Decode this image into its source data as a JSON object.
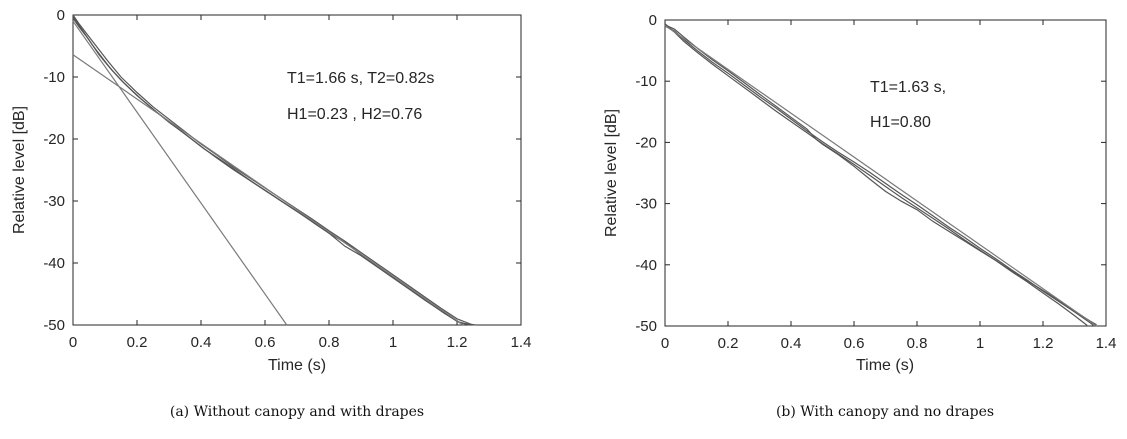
{
  "chart_data": [
    {
      "type": "line",
      "caption": "(a) Without canopy and with drapes",
      "xlabel": "Time (s)",
      "ylabel": "Relative level [dB]",
      "xlim": [
        0,
        1.4
      ],
      "ylim": [
        -50,
        0
      ],
      "xticks": [
        0,
        0.2,
        0.4,
        0.6,
        0.8,
        1,
        1.2,
        1.4
      ],
      "xtick_labels": [
        "0",
        "0.2",
        "0.4",
        "0.6",
        "0.8",
        "1",
        "1.2",
        "1.4"
      ],
      "yticks": [
        0,
        -10,
        -20,
        -30,
        -40,
        -50
      ],
      "ytick_labels": [
        "0",
        "-10",
        "-20",
        "-30",
        "-40",
        "-50"
      ],
      "grid": false,
      "annotations": [
        "T1=1.66 s, T2=0.82s",
        "H1=0.23  , H2=0.76"
      ],
      "colors": {
        "measured": "#555555",
        "fit": "#7a7a7a",
        "axis": "#262626"
      },
      "series": [
        {
          "x": [
            0,
            0.02,
            0.05,
            0.08,
            0.11,
            0.15,
            0.2,
            0.25,
            0.3,
            0.35,
            0.4,
            0.45,
            0.5,
            0.55,
            0.6,
            0.65,
            0.7,
            0.75,
            0.8,
            0.85,
            0.9,
            0.95,
            1.0,
            1.05,
            1.1,
            1.15,
            1.2,
            1.25
          ],
          "y": [
            0,
            -1.5,
            -3.5,
            -5.5,
            -7.5,
            -10.0,
            -12.5,
            -14.8,
            -16.8,
            -18.8,
            -20.8,
            -22.6,
            -24.5,
            -26.2,
            -27.9,
            -29.6,
            -31.3,
            -33.0,
            -34.8,
            -36.5,
            -38.3,
            -40.1,
            -41.9,
            -43.7,
            -45.5,
            -47.3,
            -49.0,
            -50.0
          ]
        },
        {
          "x": [
            0,
            0.02,
            0.05,
            0.08,
            0.11,
            0.15,
            0.2,
            0.25,
            0.3,
            0.35,
            0.4,
            0.45,
            0.5,
            0.55,
            0.6,
            0.65,
            0.7,
            0.75,
            0.8,
            0.85,
            0.9,
            0.95,
            1.0,
            1.05,
            1.1,
            1.15,
            1.2,
            1.24
          ],
          "y": [
            -0.5,
            -2.0,
            -4.0,
            -6.3,
            -8.2,
            -10.5,
            -13.0,
            -15.2,
            -17.3,
            -19.2,
            -21.2,
            -23.1,
            -24.9,
            -26.6,
            -28.3,
            -30.0,
            -31.7,
            -33.4,
            -35.2,
            -37.3,
            -38.8,
            -40.6,
            -42.4,
            -44.2,
            -46.0,
            -47.7,
            -49.4,
            -50.0
          ]
        },
        {
          "x": [
            0,
            0.03,
            0.06,
            0.09,
            0.12,
            0.16,
            0.21,
            0.26,
            0.31,
            0.36,
            0.41,
            0.46,
            0.51,
            0.56,
            0.61,
            0.66,
            0.71,
            0.76,
            0.81,
            0.86,
            0.91,
            0.96,
            1.01,
            1.06,
            1.11,
            1.16,
            1.21,
            1.26
          ],
          "y": [
            -0.2,
            -2.5,
            -4.8,
            -6.8,
            -8.8,
            -11.0,
            -13.4,
            -15.6,
            -17.6,
            -19.6,
            -21.6,
            -23.3,
            -25.1,
            -26.9,
            -28.6,
            -30.3,
            -32.0,
            -33.8,
            -35.5,
            -37.0,
            -39.1,
            -40.9,
            -42.7,
            -44.5,
            -46.3,
            -48.1,
            -49.7,
            -50.0
          ]
        },
        {
          "x": [
            0,
            0.668
          ],
          "y": [
            -1.0,
            -50.0
          ]
        },
        {
          "x": [
            0,
            1.22
          ],
          "y": [
            -6.4,
            -50.0
          ]
        }
      ]
    },
    {
      "type": "line",
      "caption": "(b) With canopy and no drapes",
      "xlabel": "Time (s)",
      "ylabel": "Relative level [dB]",
      "xlim": [
        0,
        1.4
      ],
      "ylim": [
        -50,
        0
      ],
      "xticks": [
        0,
        0.2,
        0.4,
        0.6,
        0.8,
        1,
        1.2,
        1.4
      ],
      "xtick_labels": [
        "0",
        "0.2",
        "0.4",
        "0.6",
        "0.8",
        "1",
        "1.2",
        "1.4"
      ],
      "yticks": [
        0,
        -10,
        -20,
        -30,
        -40,
        -50
      ],
      "ytick_labels": [
        "0",
        "-10",
        "-20",
        "-30",
        "-40",
        "-50"
      ],
      "grid": false,
      "annotations": [
        "T1=1.63 s,",
        "H1=0.80"
      ],
      "colors": {
        "measured": "#555555",
        "fit": "#7a7a7a",
        "axis": "#262626"
      },
      "series": [
        {
          "x": [
            0,
            0.03,
            0.06,
            0.1,
            0.15,
            0.2,
            0.25,
            0.3,
            0.35,
            0.4,
            0.45,
            0.48,
            0.5,
            0.55,
            0.6,
            0.65,
            0.7,
            0.75,
            0.8,
            0.85,
            0.9,
            0.95,
            1.0,
            1.05,
            1.1,
            1.15,
            1.2,
            1.25,
            1.3,
            1.35,
            1.37
          ],
          "y": [
            -0.8,
            -1.5,
            -2.8,
            -4.5,
            -6.5,
            -8.3,
            -10.2,
            -12.1,
            -14.0,
            -15.9,
            -17.8,
            -19.5,
            -20.3,
            -22.0,
            -23.9,
            -26.0,
            -28.0,
            -29.6,
            -31.0,
            -32.9,
            -34.5,
            -36.1,
            -37.7,
            -39.3,
            -41.0,
            -42.6,
            -44.2,
            -45.8,
            -47.6,
            -49.2,
            -49.8
          ]
        },
        {
          "x": [
            0,
            0.03,
            0.06,
            0.1,
            0.15,
            0.2,
            0.25,
            0.3,
            0.35,
            0.4,
            0.45,
            0.5,
            0.55,
            0.6,
            0.65,
            0.7,
            0.75,
            0.8,
            0.85,
            0.9,
            0.95,
            1.0,
            1.05,
            1.1,
            1.15,
            1.2,
            1.25,
            1.3,
            1.35,
            1.36
          ],
          "y": [
            -1.0,
            -1.8,
            -3.2,
            -4.9,
            -6.9,
            -8.7,
            -10.6,
            -12.5,
            -14.3,
            -16.2,
            -18.1,
            -19.9,
            -21.6,
            -23.2,
            -24.9,
            -26.7,
            -28.5,
            -30.2,
            -32.0,
            -33.8,
            -35.5,
            -37.3,
            -39.0,
            -40.8,
            -42.5,
            -44.3,
            -46.0,
            -47.7,
            -49.5,
            -49.9
          ]
        },
        {
          "x": [
            0,
            0.03,
            0.06,
            0.1,
            0.15,
            0.2,
            0.25,
            0.3,
            0.35,
            0.4,
            0.45,
            0.5,
            0.55,
            0.6,
            0.65,
            0.7,
            0.75,
            0.8,
            0.85,
            0.9,
            0.95,
            1.0,
            1.05,
            1.1,
            1.15,
            1.2,
            1.25,
            1.3,
            1.34
          ],
          "y": [
            -0.6,
            -2.0,
            -3.5,
            -5.2,
            -7.2,
            -9.1,
            -11.0,
            -12.9,
            -14.8,
            -16.6,
            -18.4,
            -20.2,
            -21.9,
            -23.6,
            -25.4,
            -27.2,
            -29.0,
            -30.7,
            -32.4,
            -34.1,
            -35.9,
            -37.6,
            -39.3,
            -41.1,
            -42.8,
            -44.6,
            -46.4,
            -48.3,
            -49.9
          ]
        },
        {
          "x": [
            0,
            1.37
          ],
          "y": [
            -0.9,
            -50.0
          ]
        }
      ]
    }
  ]
}
